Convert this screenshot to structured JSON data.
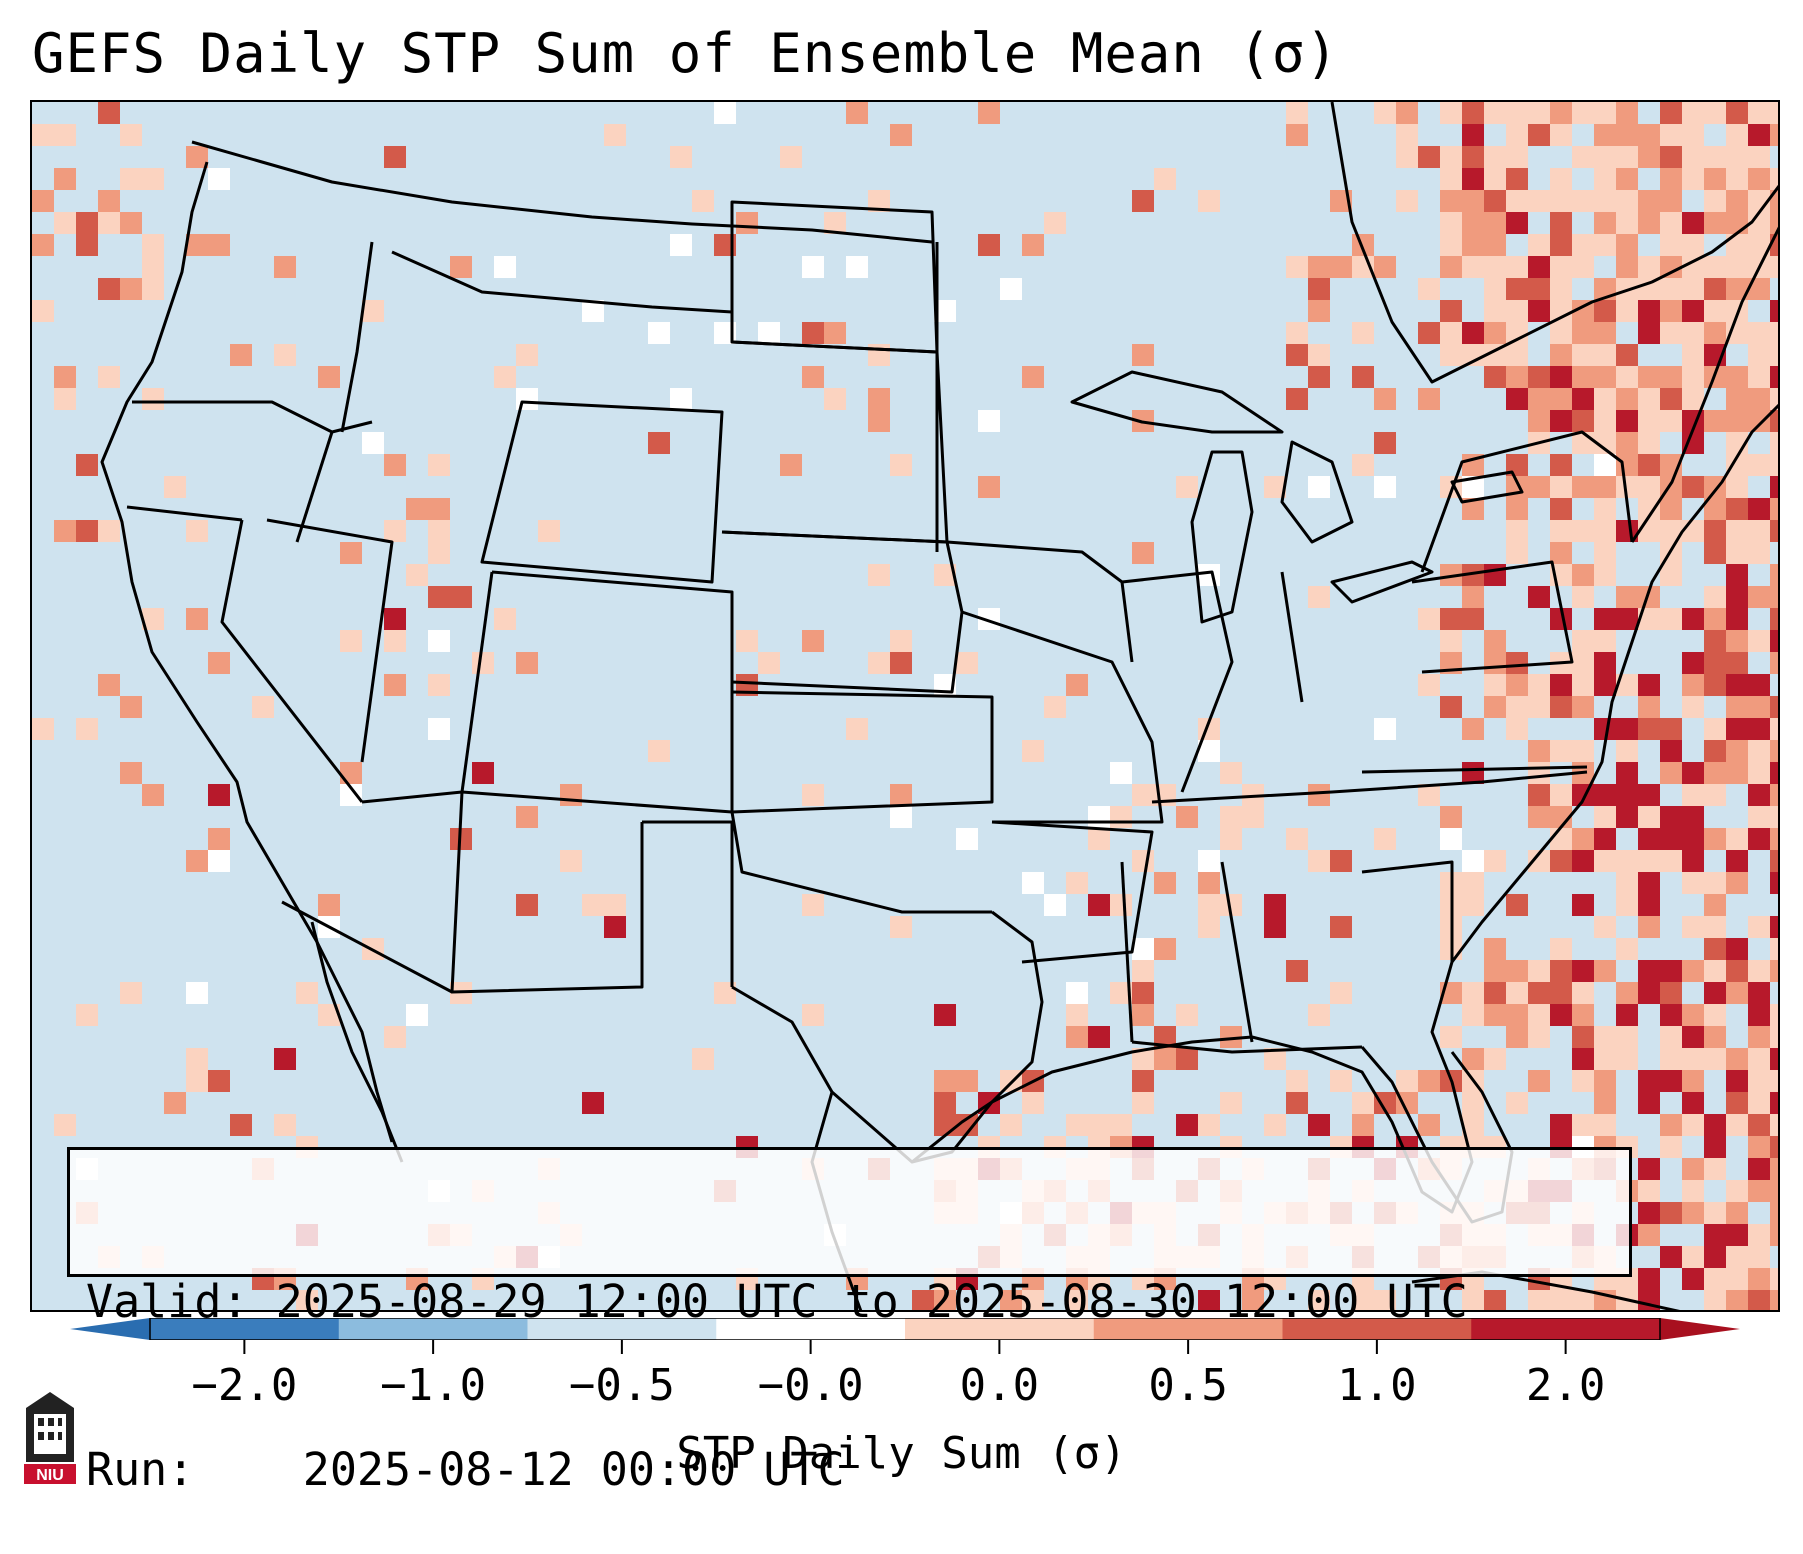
{
  "title": "GEFS Daily STP Sum of Ensemble Mean (σ)",
  "valid_label": "Valid:",
  "valid_value": "2025-08-29 12:00 UTC to 2025-08-30 12:00 UTC",
  "run_label": "Run:",
  "run_value": "2025-08-12 00:00 UTC",
  "colorbar": {
    "label": "STP Daily Sum (σ)",
    "ticks": [
      "−2.0",
      "−1.0",
      "−0.5",
      "−0.0",
      "0.0",
      "0.5",
      "1.0",
      "2.0"
    ],
    "bins": [
      {
        "color": "#3a7dbd"
      },
      {
        "color": "#8cbcde"
      },
      {
        "color": "#cfe3ef"
      },
      {
        "color": "#ffffff"
      },
      {
        "color": "#fbd3c0"
      },
      {
        "color": "#f09b7e"
      },
      {
        "color": "#d35a4a"
      },
      {
        "color": "#b7192b"
      }
    ],
    "extend_low_color": "#2a6db0",
    "extend_high_color": "#a8101f"
  },
  "map": {
    "background_color": "#cfe3ef",
    "projection": "Lambert Conformal (CONUS)",
    "features": [
      "state boundaries",
      "coastlines",
      "country borders"
    ]
  },
  "logo_text": "NIU"
}
